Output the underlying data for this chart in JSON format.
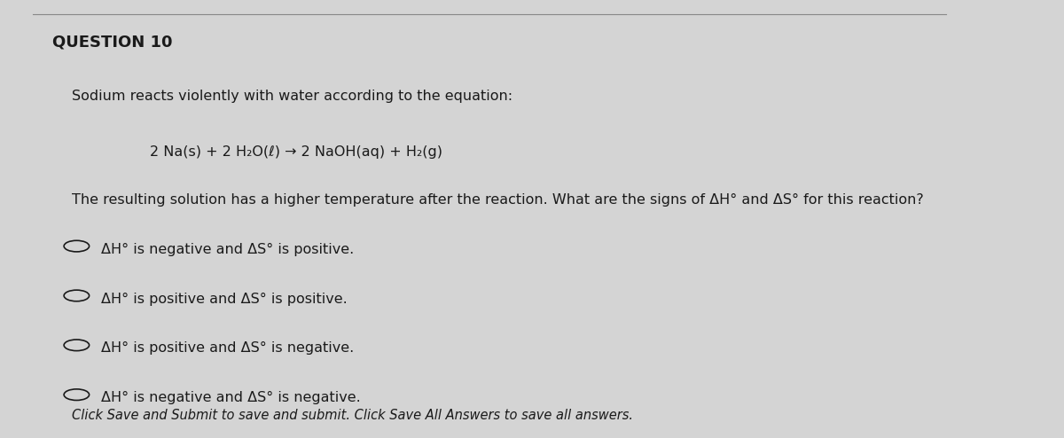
{
  "title": "QUESTION 10",
  "intro": "Sodium reacts violently with water according to the equation:",
  "equation": "2 Na(s) + 2 H₂O(ℓ) → 2 NaOH(aq) + H₂(g)",
  "question": "The resulting solution has a higher temperature after the reaction. What are the signs of ΔH° and ΔS° for this reaction?",
  "options": [
    "ΔH° is negative and ΔS° is positive.",
    "ΔH° is positive and ΔS° is positive.",
    "ΔH° is positive and ΔS° is negative.",
    "ΔH° is negative and ΔS° is negative."
  ],
  "footer": "Click Save and Submit to save and submit. Click Save All Answers to save all answers.",
  "bg_color": "#d4d4d4",
  "text_color": "#1a1a1a",
  "title_fontsize": 13,
  "body_fontsize": 11.5,
  "equation_fontsize": 11.5,
  "option_fontsize": 11.5,
  "footer_fontsize": 10.5
}
